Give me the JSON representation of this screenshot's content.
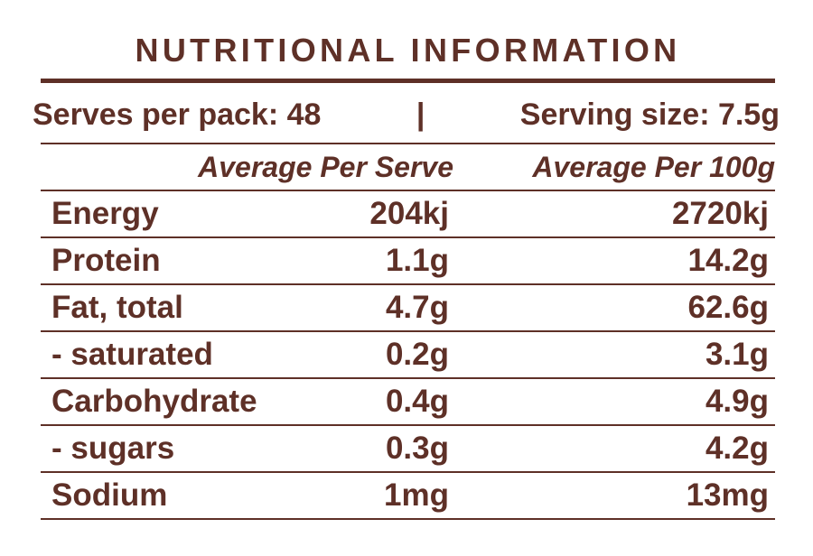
{
  "colors": {
    "text_brown": "#5E3027",
    "background": "#FFFFFF"
  },
  "title": "NUTRITIONAL INFORMATION",
  "pack_info": {
    "serves_label": "Serves per pack: 48",
    "separator": "|",
    "serving_label": "Serving size: 7.5g"
  },
  "table": {
    "columns": [
      "",
      "Average Per Serve",
      "Average Per 100g"
    ],
    "rows": [
      {
        "name": "Energy",
        "per_serve": "204kj",
        "per_100g": "2720kj"
      },
      {
        "name": "Protein",
        "per_serve": "1.1g",
        "per_100g": "14.2g"
      },
      {
        "name": "Fat, total",
        "per_serve": "4.7g",
        "per_100g": "62.6g"
      },
      {
        "name": "- saturated",
        "per_serve": "0.2g",
        "per_100g": "3.1g"
      },
      {
        "name": "Carbohydrate",
        "per_serve": "0.4g",
        "per_100g": "4.9g"
      },
      {
        "name": "- sugars",
        "per_serve": "0.3g",
        "per_100g": "4.2g"
      },
      {
        "name": "Sodium",
        "per_serve": "1mg",
        "per_100g": "13mg"
      }
    ]
  }
}
